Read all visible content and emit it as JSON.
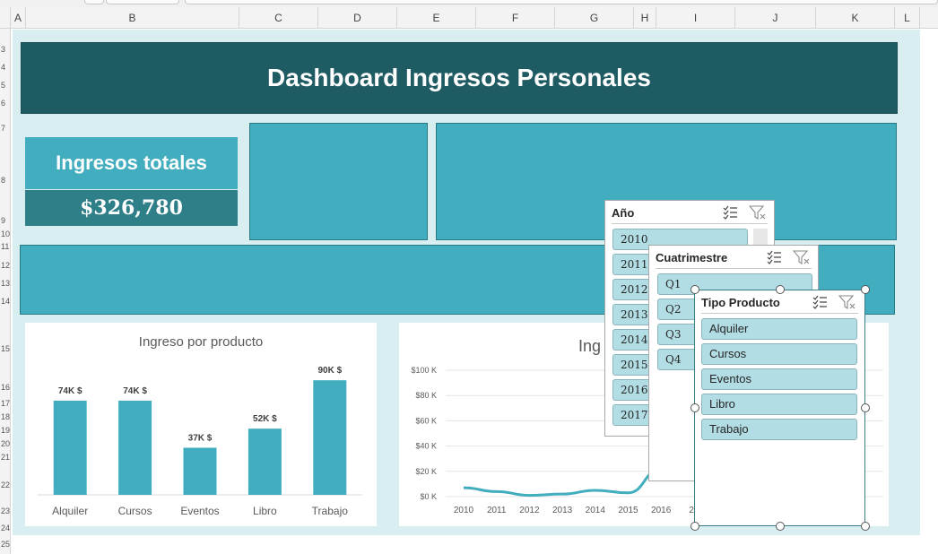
{
  "spreadsheet": {
    "columns": [
      "A",
      "B",
      "C",
      "D",
      "E",
      "F",
      "G",
      "H",
      "I",
      "J",
      "K",
      "L"
    ],
    "rows": [
      "3",
      "4",
      "5",
      "6",
      "7",
      "8",
      "9",
      "10",
      "11",
      "12",
      "13",
      "14",
      "15",
      "16",
      "17",
      "18",
      "19",
      "20",
      "21",
      "22",
      "23",
      "24",
      "25"
    ]
  },
  "dashboard": {
    "title": "Dashboard Ingresos Personales",
    "kpi": {
      "label": "Ingresos totales",
      "value": "$326,780"
    }
  },
  "bar_chart": {
    "title": "Ingreso por producto"
  },
  "line_chart": {
    "title_partial": "Ing"
  },
  "chart_data": [
    {
      "type": "bar",
      "title": "Ingreso por producto",
      "categories": [
        "Alquiler",
        "Cursos",
        "Eventos",
        "Libro",
        "Trabajo"
      ],
      "values": [
        74000,
        74000,
        37000,
        52000,
        90000
      ],
      "data_labels": [
        "74K $",
        "74K $",
        "37K $",
        "52K $",
        "90K $"
      ],
      "ylim": [
        0,
        100000
      ],
      "grid": false
    },
    {
      "type": "line",
      "categories": [
        "2010",
        "2011",
        "2012",
        "2013",
        "2014",
        "2015",
        "2016",
        "20",
        "2"
      ],
      "x": [
        2010,
        2011,
        2012,
        2013,
        2014,
        2015,
        2016
      ],
      "y_ticks": [
        "$100 K",
        "$80 K",
        "$60 K",
        "$40 K",
        "$20 K",
        "$0 K"
      ],
      "ylim": [
        0,
        100000
      ],
      "series": [
        {
          "values": [
            7000,
            4000,
            1000,
            2000,
            5000,
            3000,
            22000
          ]
        }
      ],
      "grid": true
    }
  ],
  "slicers": {
    "year": {
      "title": "Año",
      "items": [
        "2010",
        "2011",
        "2012",
        "2013",
        "2014",
        "2015",
        "2016",
        "2017"
      ]
    },
    "quarter": {
      "title": "Cuatrimestre",
      "items": [
        "Q1",
        "Q2",
        "Q3",
        "Q4"
      ]
    },
    "product": {
      "title": "Tipo Producto",
      "items": [
        "Alquiler",
        "Cursos",
        "Eventos",
        "Libro",
        "Trabajo"
      ]
    }
  },
  "colors": {
    "banner": "#1f5b63",
    "accent": "#42adbe",
    "kpi_dark": "#2f7f89",
    "dashboard_bg": "#d8eef1",
    "slicer_item": "#b2dde4"
  },
  "icons": {
    "multi_select": "multi-select-icon",
    "clear_filter": "clear-filter-icon"
  }
}
